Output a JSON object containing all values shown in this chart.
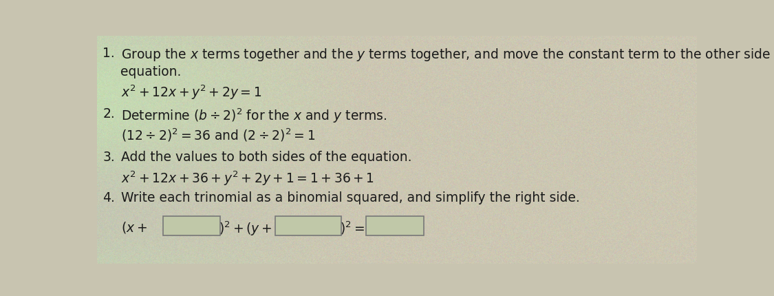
{
  "bg_color_base": "#c8c4b0",
  "bg_color_left": "#a0b890",
  "text_color": "#1a1a1a",
  "step1_num": "1.",
  "step1_line1": "Group the $x$ terms together and the $y$ terms together, and move the constant term to the other side of the",
  "step1_line2": "equation.",
  "step1_eq": "$x^2+ 12x + y^2+ 2y = 1$",
  "step2_num": "2.",
  "step2_line1": "Determine $(b \\div 2)^2$ for the $x$ and $y$ terms.",
  "step2_eq": "$(12 \\div 2)^2 = 36$ and $(2 \\div 2)^2 = 1$",
  "step3_num": "3.",
  "step3_line1": "Add the values to both sides of the equation.",
  "step3_eq": "$x^2 + 12x + 36 + y^2 + 2y + 1 = 1 + 36 + 1$",
  "step4_num": "4.",
  "step4_line1": "Write each trinomial as a binomial squared, and simplify the right side.",
  "step4_eq_p1": "$(x +$",
  "step4_eq_p2": "$)^2 + (y +$",
  "step4_eq_p3": "$)^2 =$",
  "box_facecolor": "#c0c8a8",
  "box_edgecolor": "#777777",
  "fig_width": 11.25,
  "fig_height": 4.3,
  "dpi": 100,
  "fs_step": 13.5,
  "fs_eq": 13.5
}
